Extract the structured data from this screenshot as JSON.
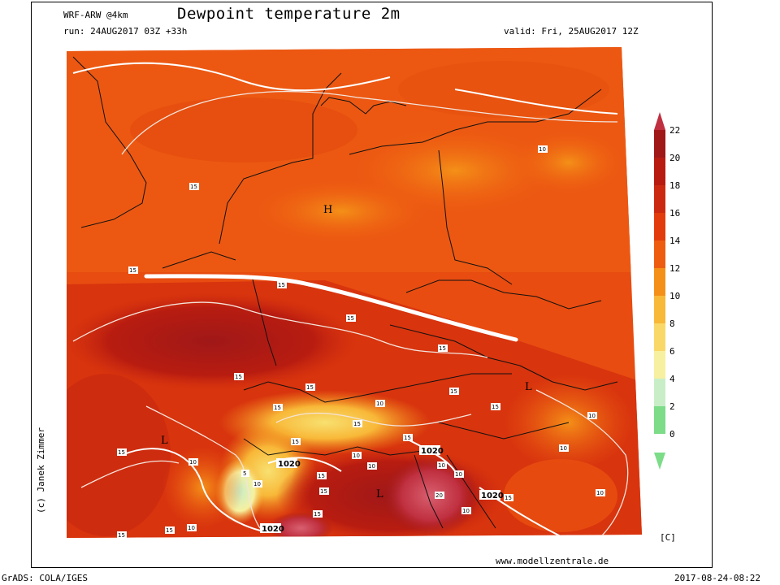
{
  "header": {
    "model": "WRF-ARW @4km",
    "title": "Dewpoint temperature 2m",
    "run": "run: 24AUG2017 03Z +33h",
    "valid": "valid: Fri, 25AUG2017 12Z"
  },
  "credit": "(c) Janek Zimmer",
  "website": "www.modellzentrale.de",
  "footer": {
    "grads": "GrADS: COLA/IGES",
    "timestamp": "2017-08-24-08:22"
  },
  "colorbar": {
    "unit": "[C]",
    "levels": [
      "22",
      "20",
      "18",
      "16",
      "14",
      "12",
      "10",
      "8",
      "6",
      "4",
      "2",
      "0"
    ],
    "colors": [
      "#c03040",
      "#a01818",
      "#b81c10",
      "#cc2a10",
      "#e23c0c",
      "#ee5c10",
      "#f49018",
      "#f8b838",
      "#fad868",
      "#f6f0a0",
      "#c8eec8",
      "#7cdc88"
    ]
  },
  "map": {
    "pressure_systems": [
      {
        "id": "h1",
        "symbol": "H"
      },
      {
        "id": "l1",
        "symbol": "L"
      },
      {
        "id": "l2",
        "symbol": "L"
      },
      {
        "id": "l3",
        "symbol": "L"
      }
    ],
    "isobar_labels": [
      "1020",
      "1020",
      "1020",
      "1020"
    ],
    "contour_labels": [
      "10",
      "15",
      "15",
      "15",
      "15",
      "15",
      "15",
      "15",
      "10",
      "15",
      "10",
      "10",
      "15",
      "10",
      "15",
      "5",
      "10",
      "15",
      "10",
      "15",
      "15",
      "10",
      "15",
      "10",
      "10",
      "15",
      "10",
      "15",
      "10",
      "15",
      "15",
      "15",
      "15",
      "20",
      "10"
    ]
  }
}
